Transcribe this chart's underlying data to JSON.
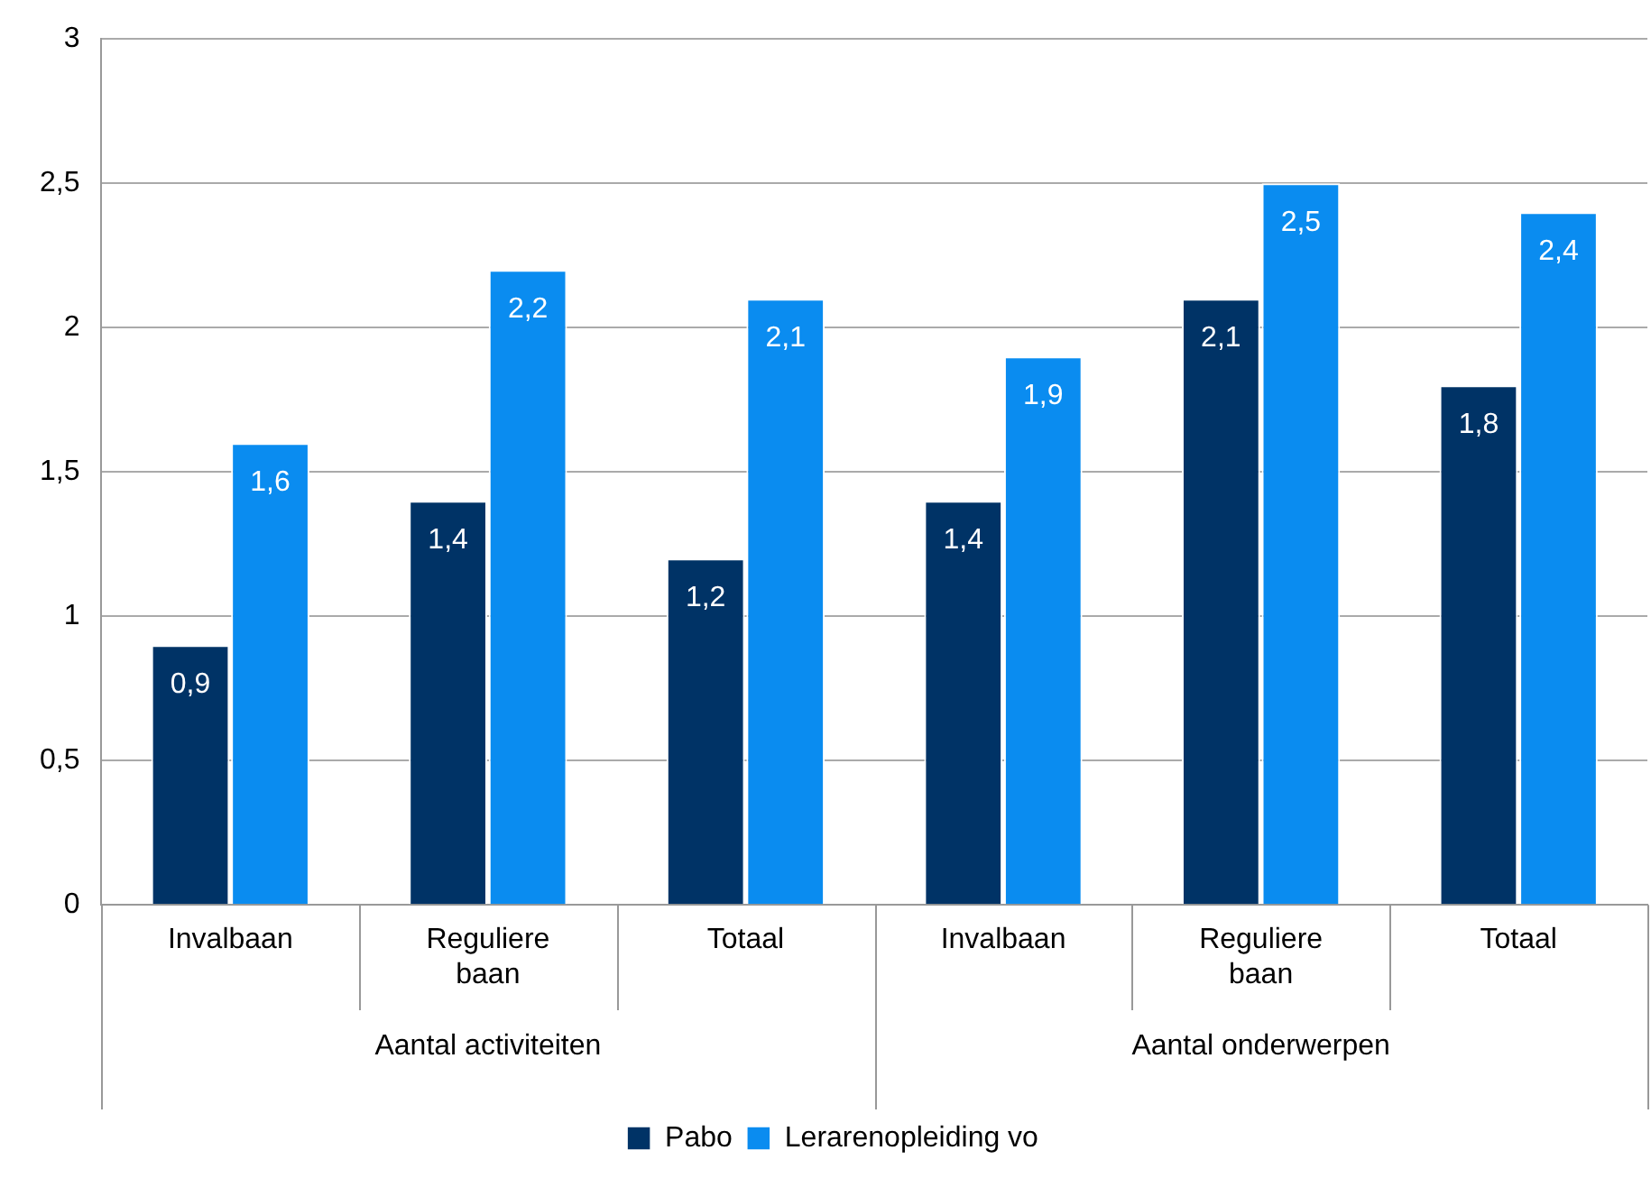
{
  "chart_data": {
    "type": "bar",
    "categories": [
      "Invalbaan",
      "Reguliere baan",
      "Totaal",
      "Invalbaan",
      "Reguliere baan",
      "Totaal"
    ],
    "annotations": [
      "Aantal activiteiten",
      "Aantal onderwerpen"
    ],
    "series": [
      {
        "name": "Pabo",
        "color": "#003366",
        "values": [
          0.9,
          1.4,
          1.2,
          1.4,
          2.1,
          1.8
        ],
        "value_labels": [
          "0,9",
          "1,4",
          "1,2",
          "1,4",
          "2,1",
          "1,8"
        ]
      },
      {
        "name": "Lerarenopleiding vo",
        "color": "#0a8cf0",
        "values": [
          1.6,
          2.2,
          2.1,
          1.9,
          2.5,
          2.4
        ],
        "value_labels": [
          "1,6",
          "2,2",
          "2,1",
          "1,9",
          "2,5",
          "2,4"
        ]
      }
    ],
    "ylim": [
      0,
      3
    ],
    "yticks": [
      0,
      {
        "value": 0.5,
        "label": "0,5"
      },
      1,
      {
        "value": 1.5,
        "label": "1,5"
      },
      2,
      {
        "value": 2.5,
        "label": "2,5"
      },
      3
    ],
    "grid": "y",
    "legend": "bottom"
  }
}
